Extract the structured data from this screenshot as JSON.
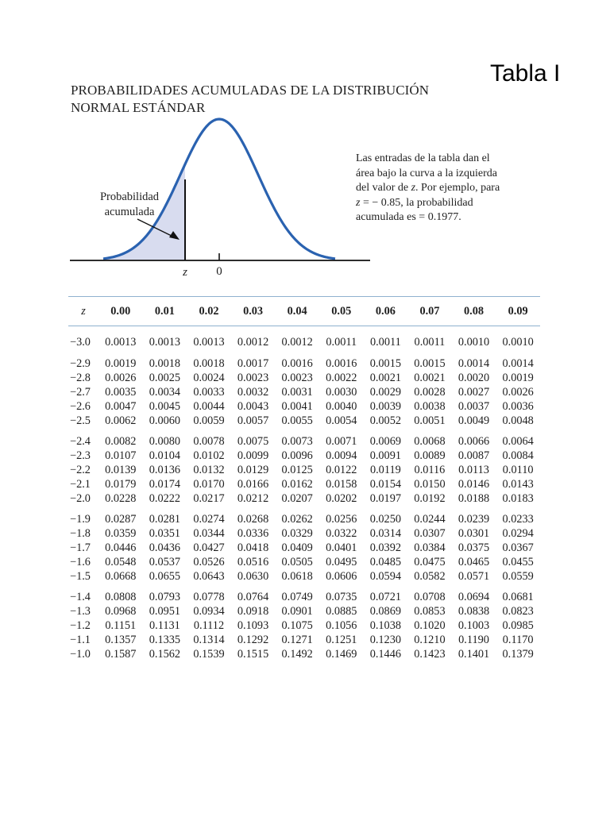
{
  "tag_label": "Tabla I",
  "title": "PROBABILIDADES ACUMULADAS DE LA DISTRIBUCIÓN NORMAL ESTÁNDAR",
  "figure": {
    "area_label_line1": "Probabilidad",
    "area_label_line2": "acumulada",
    "z_label": "z",
    "zero_label": "0",
    "note_part1": "Las entradas de la tabla dan el área bajo la curva a la izquierda del valor de ",
    "note_z1": "z",
    "note_part2": ". Por ejemplo, para ",
    "note_z2": "z",
    "note_part3": " = − 0.85, la probabilidad acumulada es = 0.1977.",
    "curve_color": "#2a62b0",
    "fill_color": "#d8dcef"
  },
  "table": {
    "header": [
      "z",
      "0.00",
      "0.01",
      "0.02",
      "0.03",
      "0.04",
      "0.05",
      "0.06",
      "0.07",
      "0.08",
      "0.09"
    ],
    "rule_color": "#8fb1cf",
    "groups": [
      [
        [
          "−3.0",
          "0.0013",
          "0.0013",
          "0.0013",
          "0.0012",
          "0.0012",
          "0.0011",
          "0.0011",
          "0.0011",
          "0.0010",
          "0.0010"
        ]
      ],
      [
        [
          "−2.9",
          "0.0019",
          "0.0018",
          "0.0018",
          "0.0017",
          "0.0016",
          "0.0016",
          "0.0015",
          "0.0015",
          "0.0014",
          "0.0014"
        ],
        [
          "−2.8",
          "0.0026",
          "0.0025",
          "0.0024",
          "0.0023",
          "0.0023",
          "0.0022",
          "0.0021",
          "0.0021",
          "0.0020",
          "0.0019"
        ],
        [
          "−2.7",
          "0.0035",
          "0.0034",
          "0.0033",
          "0.0032",
          "0.0031",
          "0.0030",
          "0.0029",
          "0.0028",
          "0.0027",
          "0.0026"
        ],
        [
          "−2.6",
          "0.0047",
          "0.0045",
          "0.0044",
          "0.0043",
          "0.0041",
          "0.0040",
          "0.0039",
          "0.0038",
          "0.0037",
          "0.0036"
        ],
        [
          "−2.5",
          "0.0062",
          "0.0060",
          "0.0059",
          "0.0057",
          "0.0055",
          "0.0054",
          "0.0052",
          "0.0051",
          "0.0049",
          "0.0048"
        ]
      ],
      [
        [
          "−2.4",
          "0.0082",
          "0.0080",
          "0.0078",
          "0.0075",
          "0.0073",
          "0.0071",
          "0.0069",
          "0.0068",
          "0.0066",
          "0.0064"
        ],
        [
          "−2.3",
          "0.0107",
          "0.0104",
          "0.0102",
          "0.0099",
          "0.0096",
          "0.0094",
          "0.0091",
          "0.0089",
          "0.0087",
          "0.0084"
        ],
        [
          "−2.2",
          "0.0139",
          "0.0136",
          "0.0132",
          "0.0129",
          "0.0125",
          "0.0122",
          "0.0119",
          "0.0116",
          "0.0113",
          "0.0110"
        ],
        [
          "−2.1",
          "0.0179",
          "0.0174",
          "0.0170",
          "0.0166",
          "0.0162",
          "0.0158",
          "0.0154",
          "0.0150",
          "0.0146",
          "0.0143"
        ],
        [
          "−2.0",
          "0.0228",
          "0.0222",
          "0.0217",
          "0.0212",
          "0.0207",
          "0.0202",
          "0.0197",
          "0.0192",
          "0.0188",
          "0.0183"
        ]
      ],
      [
        [
          "−1.9",
          "0.0287",
          "0.0281",
          "0.0274",
          "0.0268",
          "0.0262",
          "0.0256",
          "0.0250",
          "0.0244",
          "0.0239",
          "0.0233"
        ],
        [
          "−1.8",
          "0.0359",
          "0.0351",
          "0.0344",
          "0.0336",
          "0.0329",
          "0.0322",
          "0.0314",
          "0.0307",
          "0.0301",
          "0.0294"
        ],
        [
          "−1.7",
          "0.0446",
          "0.0436",
          "0.0427",
          "0.0418",
          "0.0409",
          "0.0401",
          "0.0392",
          "0.0384",
          "0.0375",
          "0.0367"
        ],
        [
          "−1.6",
          "0.0548",
          "0.0537",
          "0.0526",
          "0.0516",
          "0.0505",
          "0.0495",
          "0.0485",
          "0.0475",
          "0.0465",
          "0.0455"
        ],
        [
          "−1.5",
          "0.0668",
          "0.0655",
          "0.0643",
          "0.0630",
          "0.0618",
          "0.0606",
          "0.0594",
          "0.0582",
          "0.0571",
          "0.0559"
        ]
      ],
      [
        [
          "−1.4",
          "0.0808",
          "0.0793",
          "0.0778",
          "0.0764",
          "0.0749",
          "0.0735",
          "0.0721",
          "0.0708",
          "0.0694",
          "0.0681"
        ],
        [
          "−1.3",
          "0.0968",
          "0.0951",
          "0.0934",
          "0.0918",
          "0.0901",
          "0.0885",
          "0.0869",
          "0.0853",
          "0.0838",
          "0.0823"
        ],
        [
          "−1.2",
          "0.1151",
          "0.1131",
          "0.1112",
          "0.1093",
          "0.1075",
          "0.1056",
          "0.1038",
          "0.1020",
          "0.1003",
          "0.0985"
        ],
        [
          "−1.1",
          "0.1357",
          "0.1335",
          "0.1314",
          "0.1292",
          "0.1271",
          "0.1251",
          "0.1230",
          "0.1210",
          "0.1190",
          "0.1170"
        ],
        [
          "−1.0",
          "0.1587",
          "0.1562",
          "0.1539",
          "0.1515",
          "0.1492",
          "0.1469",
          "0.1446",
          "0.1423",
          "0.1401",
          "0.1379"
        ]
      ]
    ]
  }
}
